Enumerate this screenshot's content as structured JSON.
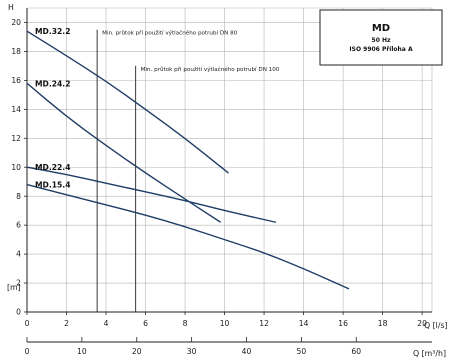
{
  "chart_data": {
    "type": "line",
    "title": "MD",
    "subtitle_lines": [
      "50 Hz",
      "ISO 9906 Příloha A"
    ],
    "ylabel": "H",
    "yunit": "[m]",
    "xlabel_primary": "Q [l/s]",
    "xlabel_secondary": "Q [m³/h]",
    "ylim": [
      0,
      21
    ],
    "xlim": [
      0,
      20.5
    ],
    "x2lim": [
      0,
      73.8
    ],
    "y_ticks": [
      0,
      2,
      4,
      6,
      8,
      10,
      12,
      14,
      16,
      18,
      20
    ],
    "x_ticks": [
      0,
      2,
      4,
      6,
      8,
      10,
      12,
      14,
      16,
      18,
      20
    ],
    "x2_ticks": [
      0,
      10,
      20,
      30,
      40,
      50,
      60
    ],
    "grid": true,
    "series": [
      {
        "name": "MD.32.2",
        "x": [
          0,
          2,
          4,
          6,
          8,
          10.2
        ],
        "y": [
          19.4,
          17.7,
          15.95,
          14.0,
          12.0,
          9.6
        ]
      },
      {
        "name": "MD.24.2",
        "x": [
          0,
          2,
          4,
          6,
          8,
          9.8
        ],
        "y": [
          15.8,
          13.5,
          11.5,
          9.6,
          7.8,
          6.2
        ]
      },
      {
        "name": "MD.22.4",
        "x": [
          0,
          2,
          4,
          6,
          8,
          10,
          12.6
        ],
        "y": [
          10.0,
          9.5,
          8.9,
          8.3,
          7.7,
          7.0,
          6.2
        ]
      },
      {
        "name": "MD.15.4",
        "x": [
          0,
          2,
          4,
          6,
          8,
          10,
          12,
          14,
          16.3
        ],
        "y": [
          8.8,
          8.1,
          7.4,
          6.7,
          5.9,
          5.0,
          4.1,
          3.0,
          1.6
        ]
      }
    ],
    "annotations": [
      {
        "text": "Min. průtok při použití výtlačného potrubí DN 80",
        "x": 3.55,
        "y_from": 0,
        "y_to": 19.5
      },
      {
        "text": "Min. průtok při použití výtlačného potrubí DN 100",
        "x": 5.5,
        "y_from": 0,
        "y_to": 17.0
      }
    ]
  }
}
